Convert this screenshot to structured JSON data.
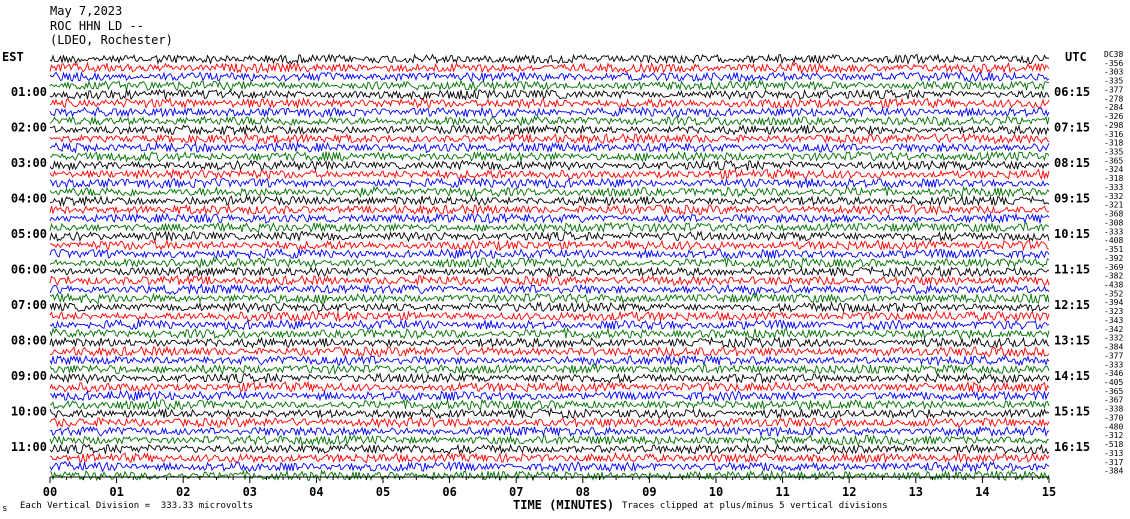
{
  "header": {
    "date": "May 7,2023",
    "station": "ROC HHN LD --",
    "network": "(LDEO, Rochester)"
  },
  "left_label": "EST",
  "right_label": "UTC",
  "footer": {
    "left_note": "Each Vertical Division =  333.33 microvolts",
    "xlabel": "TIME (MINUTES)",
    "right_note": "Traces clipped at plus/minus 5 vertical divisions",
    "corner": "s"
  },
  "chart_data": {
    "type": "line",
    "title": "",
    "xlabel": "TIME (MINUTES)",
    "xlim": [
      0,
      15
    ],
    "x_ticks": [
      "00",
      "01",
      "02",
      "03",
      "04",
      "05",
      "06",
      "07",
      "08",
      "09",
      "10",
      "11",
      "12",
      "13",
      "14",
      "15"
    ],
    "est_hours": [
      "01:00",
      "02:00",
      "03:00",
      "04:00",
      "05:00",
      "06:00",
      "07:00",
      "08:00",
      "09:00",
      "10:00",
      "11:00"
    ],
    "utc_hours": [
      "06:15",
      "07:15",
      "08:15",
      "09:15",
      "10:15",
      "11:15",
      "12:15",
      "13:15",
      "14:15",
      "15:15",
      "16:15"
    ],
    "trace_colors": [
      "#000000",
      "#ff0000",
      "#0000ff",
      "#007000"
    ],
    "trace_count": 48,
    "trace_minutes_each": 15,
    "grid": false,
    "right_values": [
      "DC38",
      "-356",
      "-303",
      "-335",
      "-377",
      "-278",
      "-284",
      "-326",
      "-298",
      "-316",
      "-318",
      "-335",
      "-365",
      "-324",
      "-318",
      "-333",
      "-332",
      "-321",
      "-368",
      "-308",
      "-333",
      "-408",
      "-351",
      "-392",
      "-369",
      "-382",
      "-438",
      "-352",
      "-394",
      "-323",
      "-343",
      "-342",
      "-332",
      "-384",
      "-377",
      "-333",
      "-346",
      "-405",
      "-365",
      "-367",
      "-338",
      "-370",
      "-480",
      "-312",
      "-518",
      "-313",
      "-317",
      "-384"
    ]
  }
}
